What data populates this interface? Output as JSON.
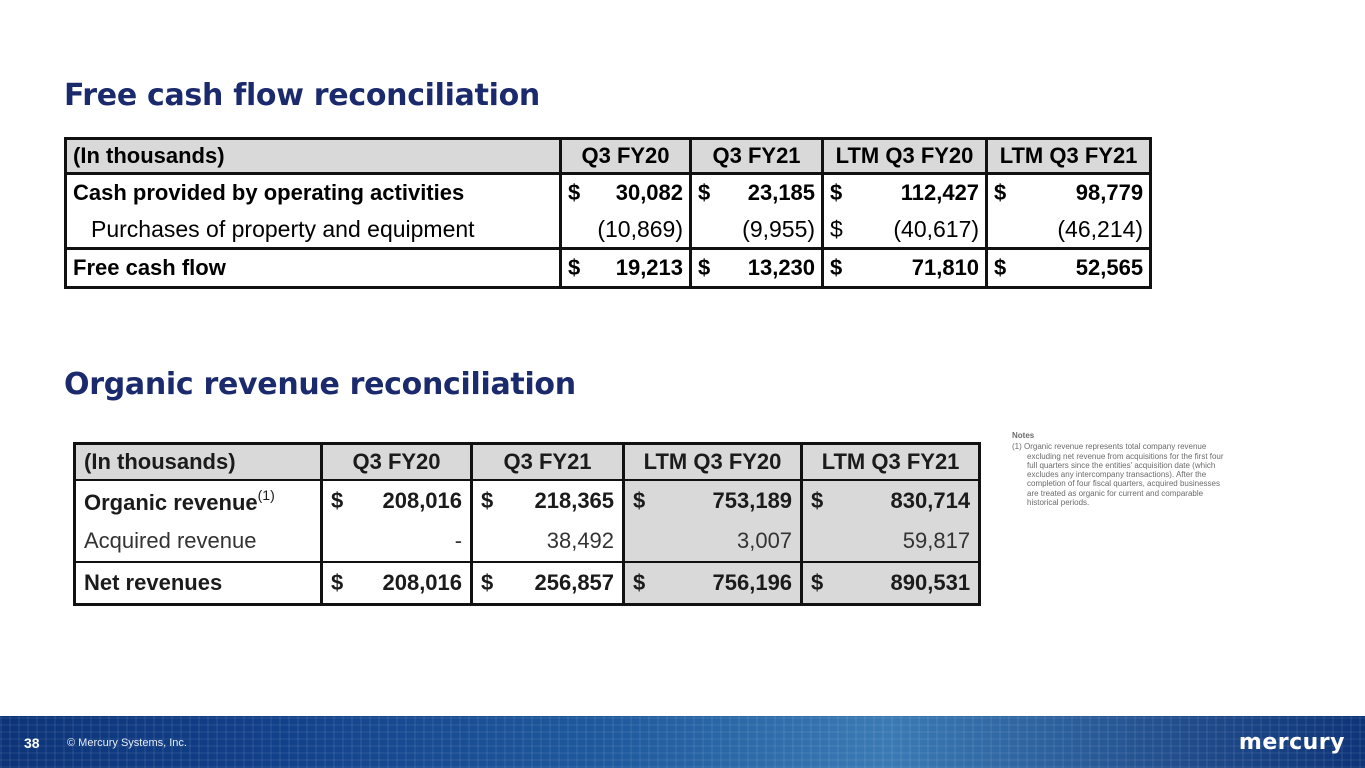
{
  "titles": {
    "fcf": "Free cash flow reconciliation",
    "organic": "Organic revenue reconciliation"
  },
  "fcf_table": {
    "header": [
      "(In thousands)",
      "Q3 FY20",
      "Q3 FY21",
      "LTM Q3 FY20",
      "LTM Q3 FY21"
    ],
    "rows": [
      {
        "label": "Cash provided by operating activities",
        "cells": [
          [
            "$",
            "30,082"
          ],
          [
            "$",
            "23,185"
          ],
          [
            "$",
            "112,427"
          ],
          [
            "$",
            "98,779"
          ]
        ]
      },
      {
        "label": "Purchases of property and equipment",
        "cells": [
          [
            "",
            "(10,869)"
          ],
          [
            "",
            "(9,955)"
          ],
          [
            "$",
            "(40,617)"
          ],
          [
            "",
            "(46,214)"
          ]
        ]
      },
      {
        "label": "Free cash flow",
        "cells": [
          [
            "$",
            "19,213"
          ],
          [
            "$",
            "13,230"
          ],
          [
            "$",
            "71,810"
          ],
          [
            "$",
            "52,565"
          ]
        ]
      }
    ]
  },
  "organic_table": {
    "header": [
      "(In thousands)",
      "Q3 FY20",
      "Q3 FY21",
      "LTM Q3 FY20",
      "LTM Q3 FY21"
    ],
    "rows": [
      {
        "label": "Organic revenue",
        "sup": "(1)",
        "cells": [
          [
            "$",
            "208,016"
          ],
          [
            "$",
            "218,365"
          ],
          [
            "$",
            "753,189"
          ],
          [
            "$",
            "830,714"
          ]
        ]
      },
      {
        "label": "Acquired revenue",
        "cells": [
          [
            "",
            "-"
          ],
          [
            "",
            "38,492"
          ],
          [
            "",
            "3,007"
          ],
          [
            "",
            "59,817"
          ]
        ]
      },
      {
        "label": "Net revenues",
        "cells": [
          [
            "$",
            "208,016"
          ],
          [
            "$",
            "256,857"
          ],
          [
            "$",
            "756,196"
          ],
          [
            "$",
            "890,531"
          ]
        ]
      }
    ]
  },
  "notes": {
    "heading": "Notes",
    "items": [
      "(1) Organic revenue represents total company revenue excluding net revenue from acquisitions for the first four full quarters since the entities' acquisition date (which excludes any intercompany transactions). After the completion of four fiscal quarters, acquired businesses are treated as organic for current and comparable historical periods."
    ]
  },
  "footer": {
    "page_number": "38",
    "copyright": "© Mercury Systems, Inc.",
    "logo_text": "mercury"
  }
}
